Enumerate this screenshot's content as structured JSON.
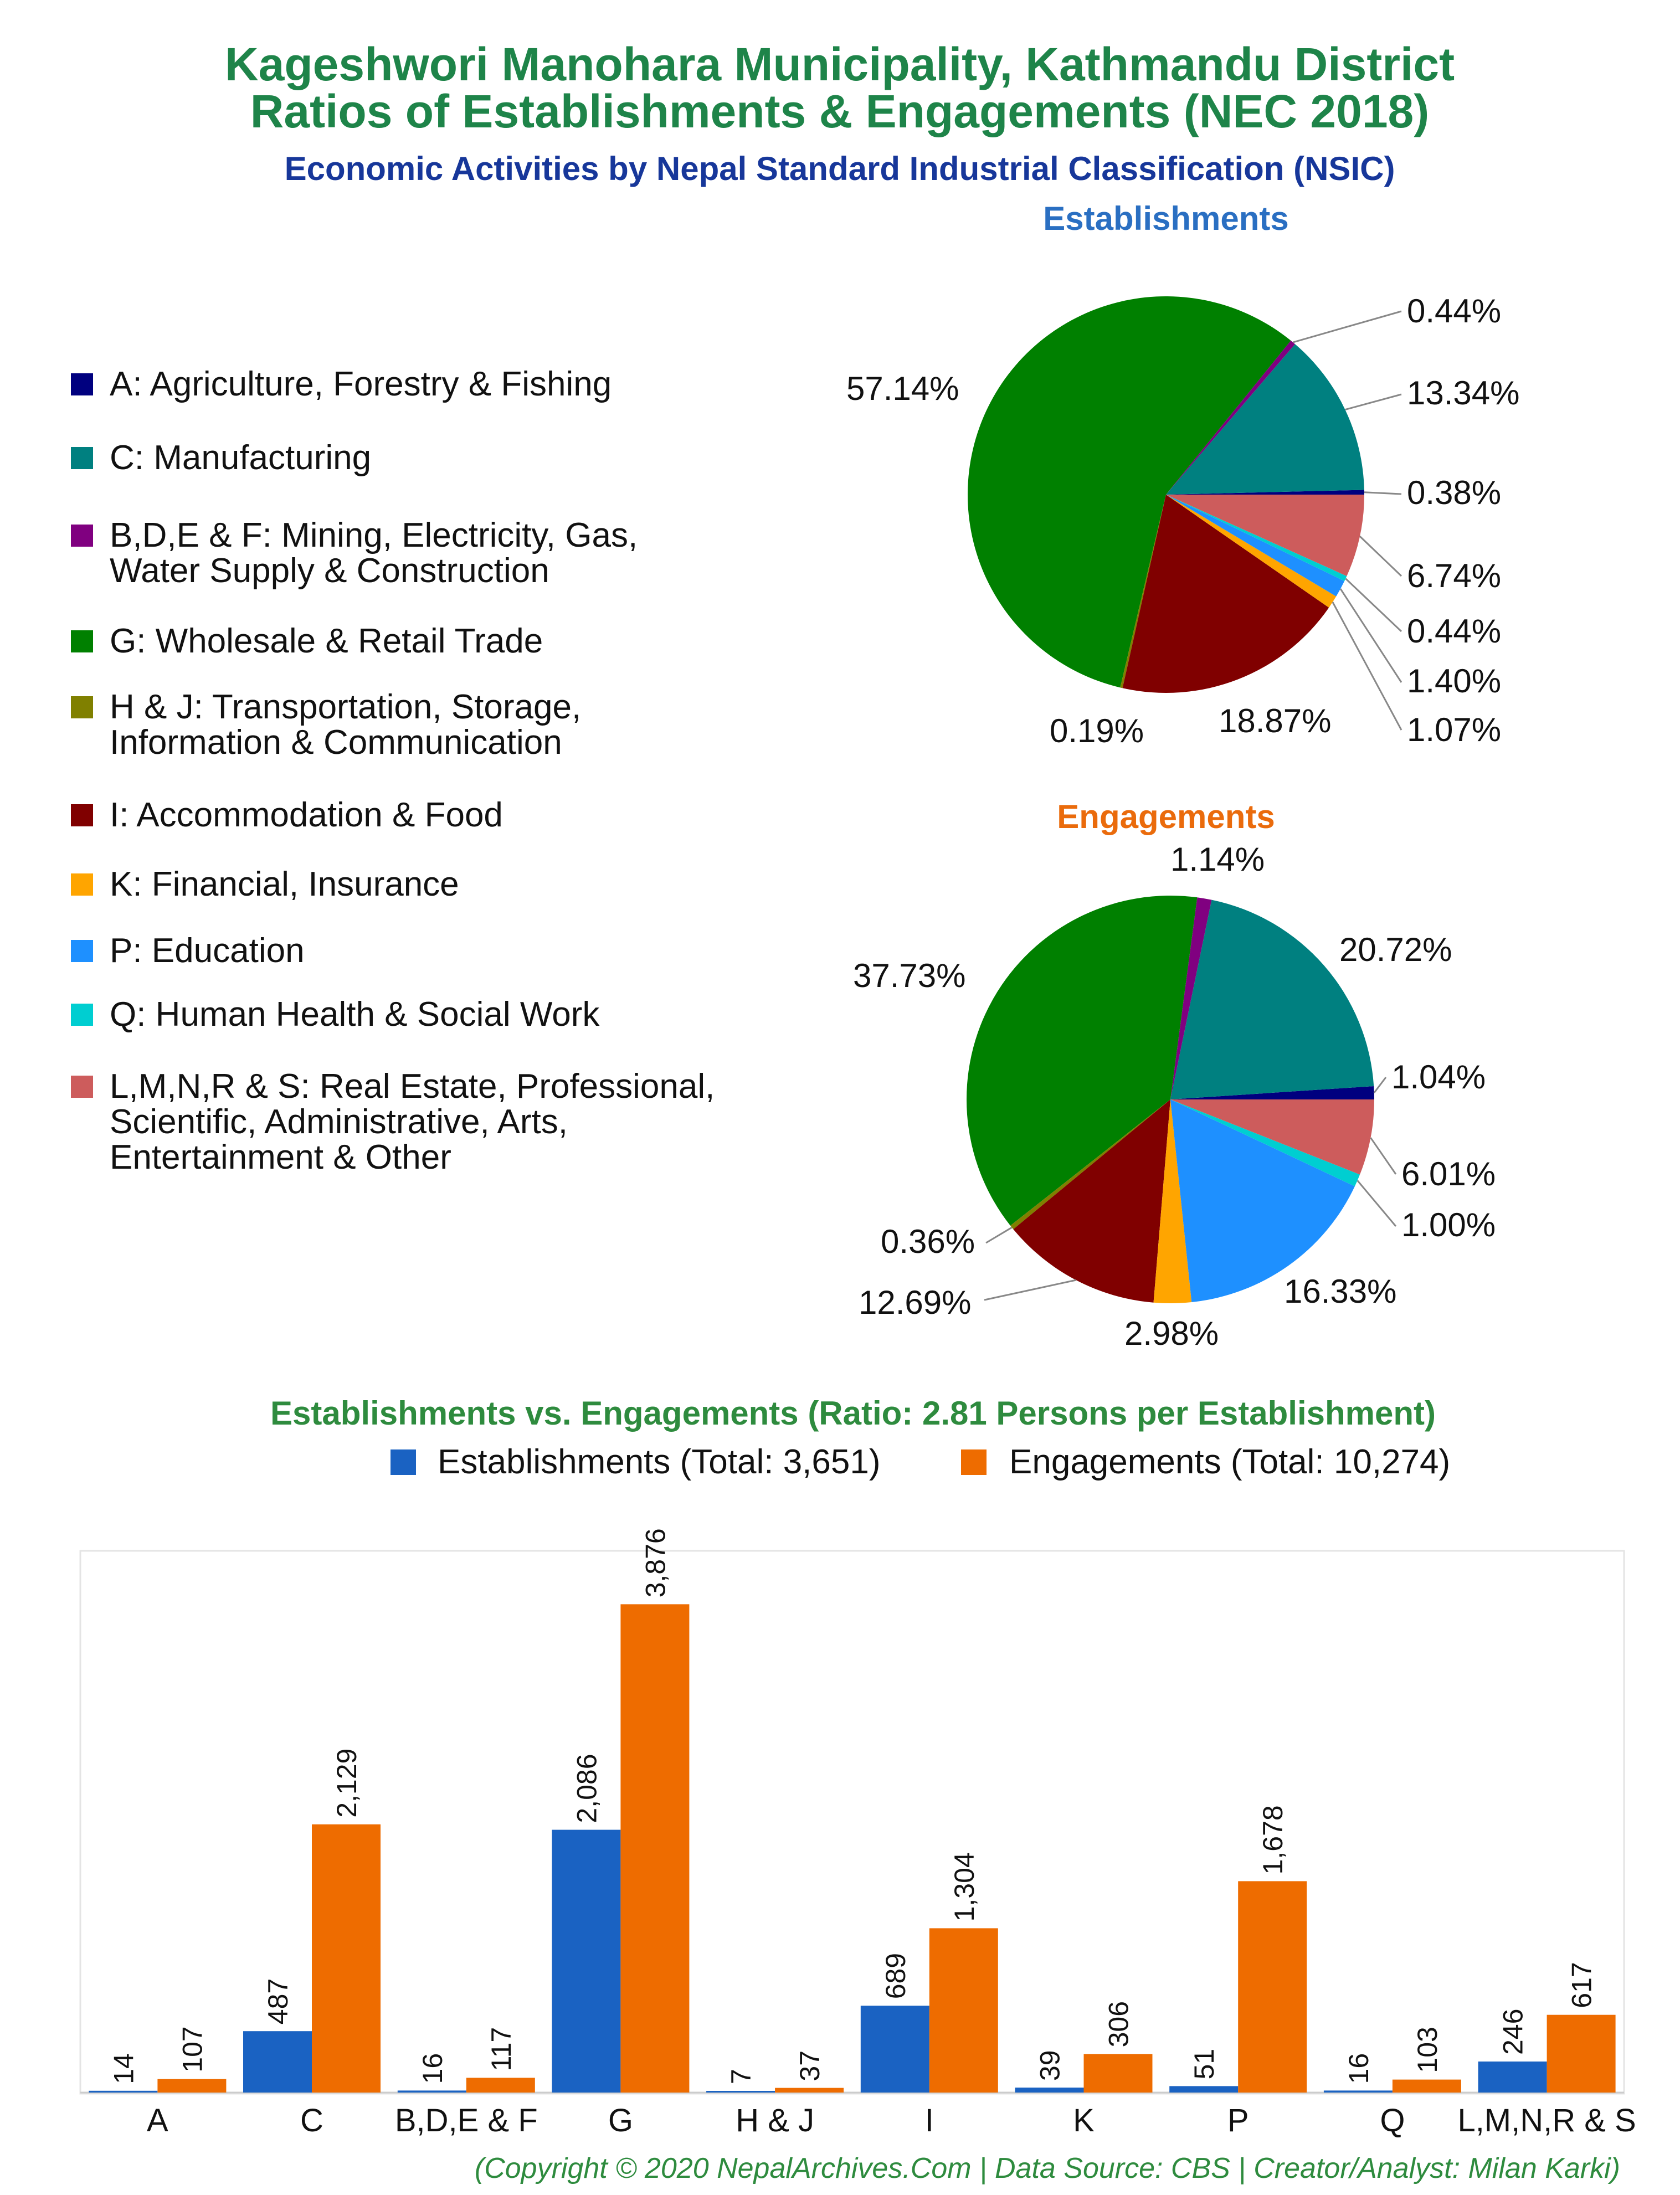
{
  "header": {
    "title_line1": "Kageshwori Manohara Municipality, Kathmandu District",
    "title_line2": "Ratios of Establishments & Engagements (NEC 2018)",
    "subtitle": "Economic Activities by Nepal Standard Industrial Classification (NSIC)"
  },
  "colors": {
    "title_green": "#1e8449",
    "subtitle_blue": "#17379a",
    "establishments_heading": "#2a6fc2",
    "engagements_heading": "#ea6b0c",
    "bar_blue": "#1a62c2",
    "bar_orange": "#ee6c00",
    "bar_title": "#2e8b3e"
  },
  "legend": [
    {
      "label": "A: Agriculture, Forestry & Fishing",
      "color": "#00007f"
    },
    {
      "label": "C: Manufacturing",
      "color": "#008080"
    },
    {
      "label": "B,D,E & F: Mining, Electricity, Gas,\nWater Supply & Construction",
      "color": "#800080"
    },
    {
      "label": "G: Wholesale & Retail Trade",
      "color": "#008000"
    },
    {
      "label": "H & J: Transportation, Storage,\nInformation & Communication",
      "color": "#808000"
    },
    {
      "label": "I: Accommodation & Food",
      "color": "#800000"
    },
    {
      "label": "K: Financial, Insurance",
      "color": "#ffa500"
    },
    {
      "label": "P: Education",
      "color": "#1e90ff"
    },
    {
      "label": "Q: Human Health & Social Work",
      "color": "#00ced1"
    },
    {
      "label": "L,M,N,R & S: Real Estate, Professional,\nScientific, Administrative, Arts,\nEntertainment & Other",
      "color": "#cd5c5c"
    }
  ],
  "chart_data": [
    {
      "type": "pie",
      "title": "Establishments",
      "slices": [
        {
          "category": "A",
          "value": 0.38,
          "label": "0.38%",
          "color": "#00007f"
        },
        {
          "category": "C",
          "value": 13.34,
          "label": "13.34%",
          "color": "#008080"
        },
        {
          "category": "B,D,E & F",
          "value": 0.44,
          "label": "0.44%",
          "color": "#800080"
        },
        {
          "category": "G",
          "value": 57.14,
          "label": "57.14%",
          "color": "#008000"
        },
        {
          "category": "H & J",
          "value": 0.19,
          "label": "0.19%",
          "color": "#808000"
        },
        {
          "category": "I",
          "value": 18.87,
          "label": "18.87%",
          "color": "#800000"
        },
        {
          "category": "K",
          "value": 1.07,
          "label": "1.07%",
          "color": "#ffa500"
        },
        {
          "category": "P",
          "value": 1.4,
          "label": "1.40%",
          "color": "#1e90ff"
        },
        {
          "category": "Q",
          "value": 0.44,
          "label": "0.44%",
          "color": "#00ced1"
        },
        {
          "category": "L,M,N,R & S",
          "value": 6.74,
          "label": "6.74%",
          "color": "#cd5c5c"
        }
      ]
    },
    {
      "type": "pie",
      "title": "Engagements",
      "slices": [
        {
          "category": "A",
          "value": 1.04,
          "label": "1.04%",
          "color": "#00007f"
        },
        {
          "category": "C",
          "value": 20.72,
          "label": "20.72%",
          "color": "#008080"
        },
        {
          "category": "B,D,E & F",
          "value": 1.14,
          "label": "1.14%",
          "color": "#800080"
        },
        {
          "category": "G",
          "value": 37.73,
          "label": "37.73%",
          "color": "#008000"
        },
        {
          "category": "H & J",
          "value": 0.36,
          "label": "0.36%",
          "color": "#808000"
        },
        {
          "category": "I",
          "value": 12.69,
          "label": "12.69%",
          "color": "#800000"
        },
        {
          "category": "K",
          "value": 2.98,
          "label": "2.98%",
          "color": "#ffa500"
        },
        {
          "category": "P",
          "value": 16.33,
          "label": "16.33%",
          "color": "#1e90ff"
        },
        {
          "category": "Q",
          "value": 1.0,
          "label": "1.00%",
          "color": "#00ced1"
        },
        {
          "category": "L,M,N,R & S",
          "value": 6.01,
          "label": "6.01%",
          "color": "#cd5c5c"
        }
      ]
    },
    {
      "type": "bar",
      "title": "Establishments vs. Engagements (Ratio: 2.81 Persons per Establishment)",
      "categories": [
        "A",
        "C",
        "B,D,E & F",
        "G",
        "H & J",
        "I",
        "K",
        "P",
        "Q",
        "L,M,N,R & S"
      ],
      "series": [
        {
          "name": "Establishments (Total: 3,651)",
          "values": [
            14,
            487,
            16,
            2086,
            7,
            689,
            39,
            51,
            16,
            246
          ],
          "labels": [
            "14",
            "487",
            "16",
            "2,086",
            "7",
            "689",
            "39",
            "51",
            "16",
            "246"
          ],
          "color": "#1a62c2"
        },
        {
          "name": "Engagements (Total: 10,274)",
          "values": [
            107,
            2129,
            117,
            3876,
            37,
            1304,
            306,
            1678,
            103,
            617
          ],
          "labels": [
            "107",
            "2,129",
            "117",
            "3,876",
            "37",
            "1,304",
            "306",
            "1,678",
            "103",
            "617"
          ],
          "color": "#ee6c00"
        }
      ],
      "ylim": [
        0,
        4300
      ],
      "xlabel": "",
      "ylabel": "",
      "legend_position": "top"
    }
  ],
  "footer": {
    "copyright": "(Copyright © 2020 NepalArchives.Com | Data Source: CBS | Creator/Analyst: Milan Karki)"
  }
}
